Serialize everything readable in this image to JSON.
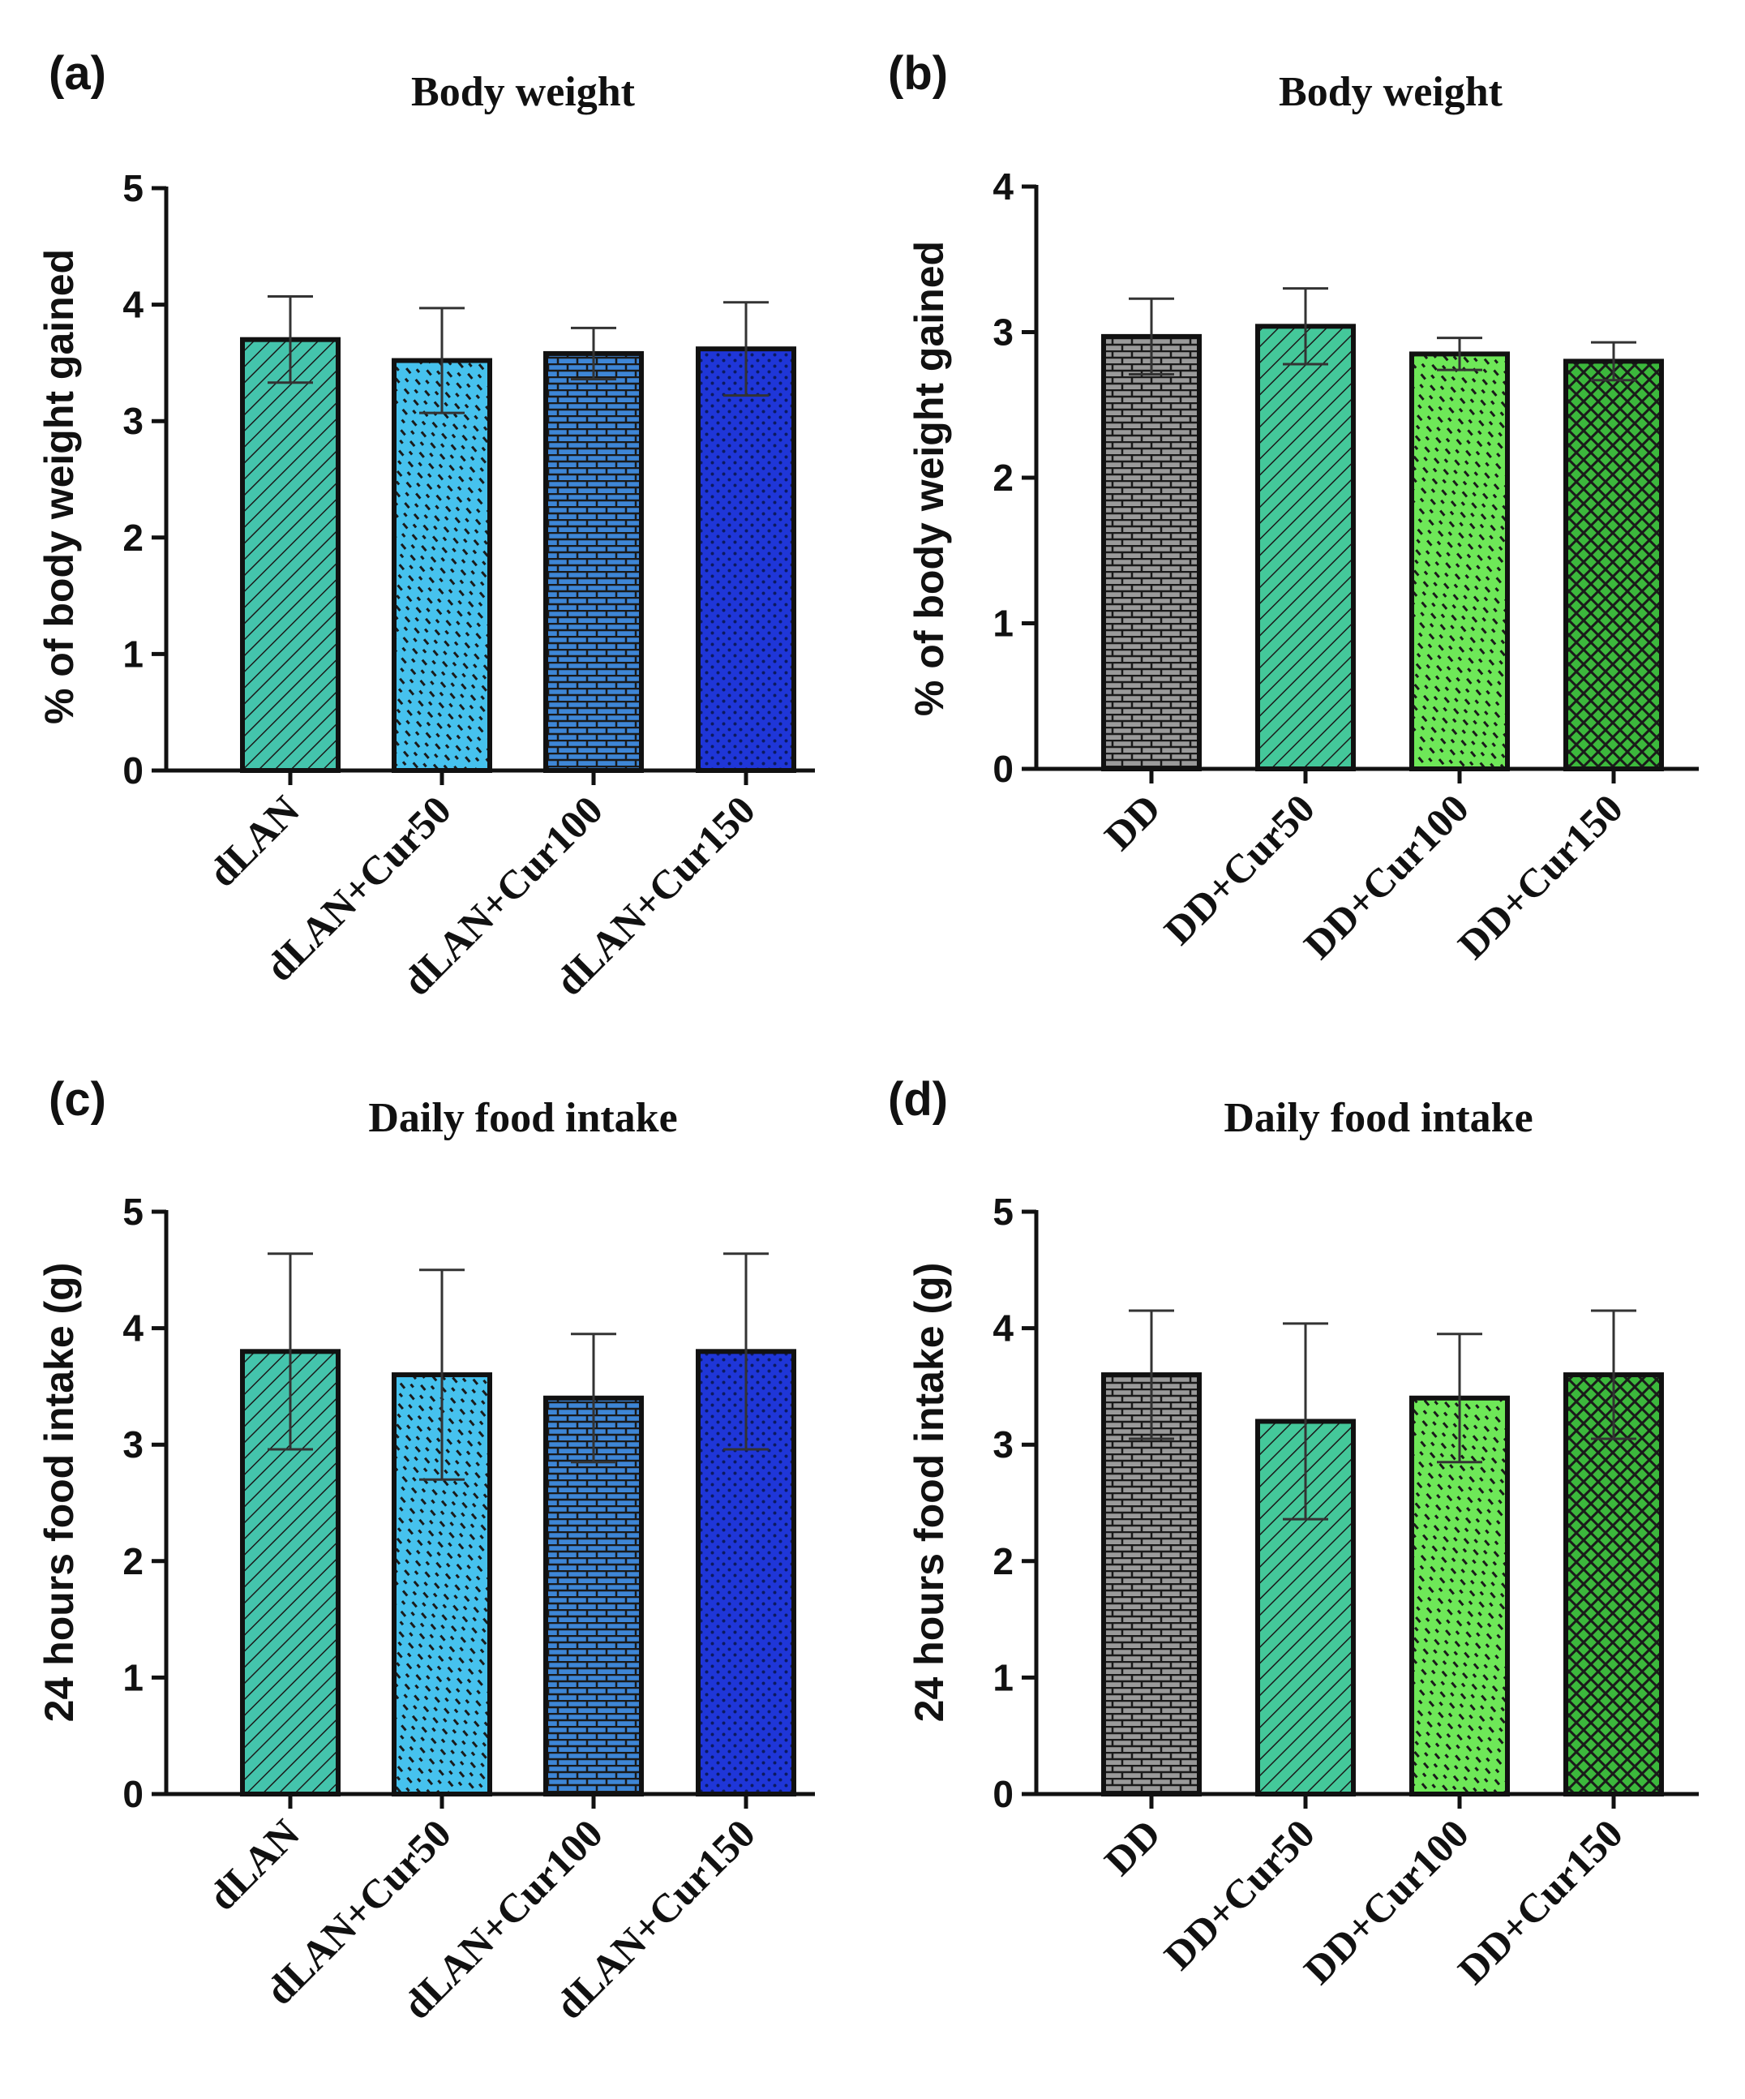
{
  "chart_data": [
    {
      "panel": "(a)",
      "type": "bar",
      "title": "Body weight",
      "ylabel": "% of body weight gained",
      "xlabel": "",
      "ylim": [
        0,
        5
      ],
      "yticks": [
        0,
        1,
        2,
        3,
        4,
        5
      ],
      "categories": [
        "dLAN",
        "dLAN+Cur50",
        "dLAN+Cur100",
        "dLAN+Cur150"
      ],
      "values": [
        3.7,
        3.52,
        3.58,
        3.62
      ],
      "errors": [
        0.37,
        0.45,
        0.22,
        0.4
      ],
      "colors": [
        "#44c4ac",
        "#46c2ee",
        "#3e86d6",
        "#1f36d8"
      ],
      "patterns": [
        "diag",
        "dash",
        "brick",
        "dots"
      ]
    },
    {
      "panel": "(b)",
      "type": "bar",
      "title": "Body weight",
      "ylabel": "% of body weight gained",
      "xlabel": "",
      "ylim": [
        0,
        4
      ],
      "yticks": [
        0,
        1,
        2,
        3,
        4
      ],
      "categories": [
        "DD",
        "DD+Cur50",
        "DD+Cur100",
        "DD+Cur150"
      ],
      "values": [
        2.97,
        3.04,
        2.85,
        2.8
      ],
      "errors": [
        0.26,
        0.26,
        0.11,
        0.13
      ],
      "colors": [
        "#9a9a9a",
        "#44c89a",
        "#6ee858",
        "#3cb83c"
      ],
      "patterns": [
        "brick",
        "diag",
        "dash",
        "cross"
      ]
    },
    {
      "panel": "(c)",
      "type": "bar",
      "title": "Daily food intake",
      "ylabel": "24 hours food intake (g)",
      "xlabel": "",
      "ylim": [
        0,
        5
      ],
      "yticks": [
        0,
        1,
        2,
        3,
        4,
        5
      ],
      "categories": [
        "dLAN",
        "dLAN+Cur50",
        "dLAN+Cur100",
        "dLAN+Cur150"
      ],
      "values": [
        3.8,
        3.6,
        3.4,
        3.8
      ],
      "errors": [
        0.84,
        0.9,
        0.55,
        0.84
      ],
      "colors": [
        "#44c4ac",
        "#46c2ee",
        "#3e86d6",
        "#1f36d8"
      ],
      "patterns": [
        "diag",
        "dash",
        "brick",
        "dots"
      ]
    },
    {
      "panel": "(d)",
      "type": "bar",
      "title": "Daily food intake",
      "ylabel": "24 hours food intake (g)",
      "xlabel": "",
      "ylim": [
        0,
        5
      ],
      "yticks": [
        0,
        1,
        2,
        3,
        4,
        5
      ],
      "categories": [
        "DD",
        "DD+Cur50",
        "DD+Cur100",
        "DD+Cur150"
      ],
      "values": [
        3.6,
        3.2,
        3.4,
        3.6
      ],
      "errors": [
        0.55,
        0.84,
        0.55,
        0.55
      ],
      "colors": [
        "#9a9a9a",
        "#44c89a",
        "#6ee858",
        "#3cb83c"
      ],
      "patterns": [
        "brick",
        "diag",
        "dash",
        "cross"
      ]
    }
  ]
}
